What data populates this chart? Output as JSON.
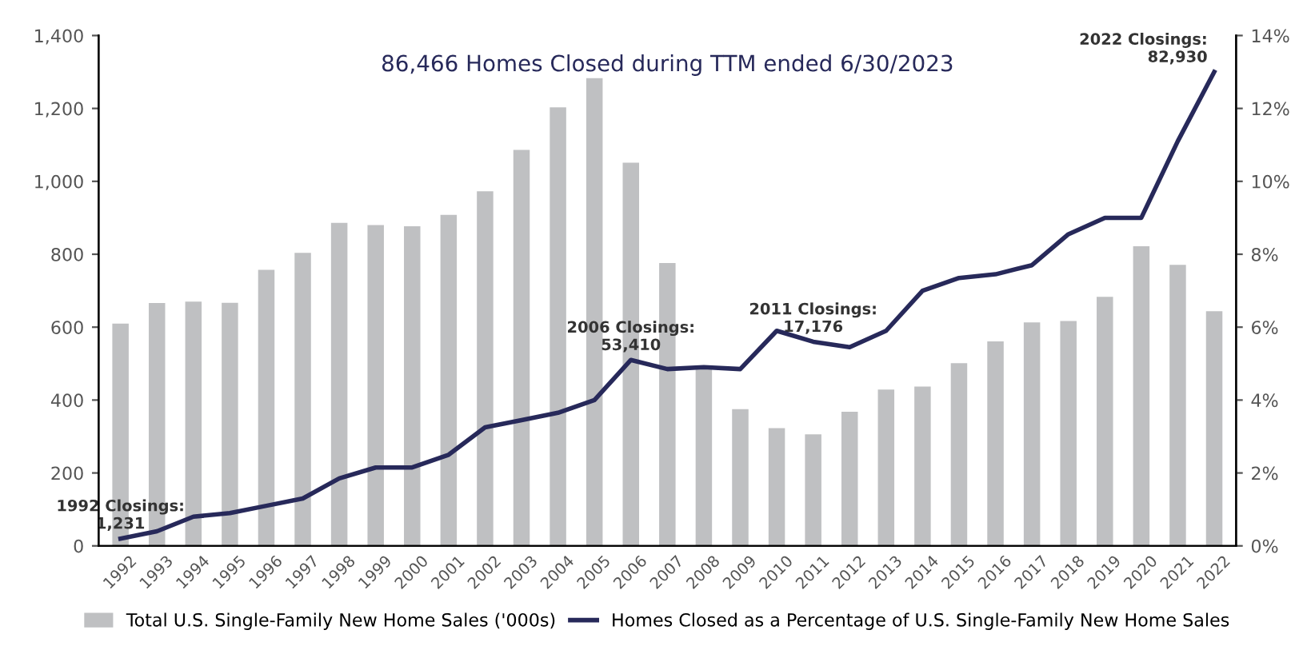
{
  "chart_data": {
    "type": "bar",
    "title": "86,466 Homes Closed during TTM ended 6/30/2023",
    "categories": [
      "1992",
      "1993",
      "1994",
      "1995",
      "1996",
      "1997",
      "1998",
      "1999",
      "2000",
      "2001",
      "2002",
      "2003",
      "2004",
      "2005",
      "2006",
      "2007",
      "2008",
      "2009",
      "2010",
      "2011",
      "2012",
      "2013",
      "2014",
      "2015",
      "2016",
      "2017",
      "2018",
      "2019",
      "2020",
      "2021",
      "2022"
    ],
    "series": [
      {
        "name": "Total U.S. Single-Family New Home Sales ('000s)",
        "color": "#bfc0c2",
        "values": [
          610,
          666,
          670,
          667,
          757,
          804,
          886,
          880,
          877,
          908,
          973,
          1086,
          1203,
          1283,
          1051,
          776,
          485,
          375,
          323,
          306,
          368,
          429,
          437,
          501,
          561,
          613,
          617,
          683,
          822,
          771,
          644
        ]
      },
      {
        "name": "Homes Closed as a Percentage of U.S. Single-Family New Home Sales",
        "type": "line",
        "axis": "y2",
        "color": "#27295a",
        "values": [
          0.2,
          0.4,
          0.8,
          0.9,
          1.1,
          1.3,
          1.85,
          2.15,
          2.15,
          2.5,
          3.25,
          3.45,
          3.65,
          4.0,
          5.1,
          4.85,
          4.9,
          4.85,
          5.9,
          5.6,
          5.45,
          5.9,
          7.0,
          7.35,
          7.45,
          7.7,
          8.55,
          9.0,
          9.0,
          11.1,
          13.0
        ]
      }
    ],
    "ylim": [
      0,
      1400
    ],
    "yticks": [
      0,
      200,
      400,
      600,
      800,
      {
        "value": 1000,
        "label": "1,000"
      },
      {
        "value": 1200,
        "label": "1,200"
      },
      {
        "value": 1400,
        "label": "1,400"
      }
    ],
    "y2lim": [
      0,
      14
    ],
    "y2ticks": [
      {
        "value": 0,
        "label": "0%"
      },
      {
        "value": 2,
        "label": "2%"
      },
      {
        "value": 4,
        "label": "4%"
      },
      {
        "value": 6,
        "label": "6%"
      },
      {
        "value": 8,
        "label": "8%"
      },
      {
        "value": 10,
        "label": "10%"
      },
      {
        "value": 12,
        "label": "12%"
      },
      {
        "value": 14,
        "label": "14%"
      }
    ],
    "annotations": [
      {
        "text": "1992 Closings:\n1,231",
        "x": "1992",
        "y": 20
      },
      {
        "text": "2006 Closings:\n53,410",
        "x": "2006",
        "y": 510
      },
      {
        "text": "2011 Closings:\n17,176",
        "x": "2011",
        "y": 560
      },
      {
        "text": "2022 Closings:\n82,930",
        "x": "2022",
        "y": 1300
      }
    ],
    "grid": false,
    "legend": "bottom",
    "marker": "none",
    "line_style": "solid"
  }
}
